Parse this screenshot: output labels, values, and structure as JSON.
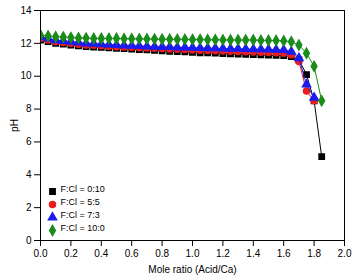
{
  "chart_data": {
    "type": "line",
    "x_label": "Mole ratio (Acid/Ca)",
    "y_label": "pH",
    "x": [
      0,
      0.05,
      0.1,
      0.15,
      0.2,
      0.25,
      0.3,
      0.35,
      0.4,
      0.45,
      0.5,
      0.55,
      0.6,
      0.65,
      0.7,
      0.75,
      0.8,
      0.85,
      0.9,
      0.95,
      1.0,
      1.05,
      1.1,
      1.15,
      1.2,
      1.25,
      1.3,
      1.35,
      1.4,
      1.45,
      1.5,
      1.55,
      1.6,
      1.65,
      1.7,
      1.75,
      1.8,
      1.85
    ],
    "series": [
      {
        "name": "F:Cl = 0:10",
        "color": "#000000",
        "marker": "square",
        "line_style": "solid",
        "values": [
          12.2,
          12.1,
          12.0,
          11.95,
          11.9,
          11.85,
          11.8,
          11.78,
          11.75,
          11.72,
          11.7,
          11.68,
          11.65,
          11.62,
          11.6,
          11.58,
          11.55,
          11.52,
          11.5,
          11.48,
          11.45,
          11.43,
          11.42,
          11.4,
          11.38,
          11.36,
          11.35,
          11.33,
          11.32,
          11.3,
          11.28,
          11.27,
          11.25,
          11.2,
          11.0,
          10.1,
          8.5,
          5.1
        ]
      },
      {
        "name": "F:Cl = 5:5",
        "color": "#ee1c1c",
        "marker": "circle",
        "line_style": "solid",
        "values": [
          12.3,
          12.2,
          12.1,
          12.05,
          12.0,
          11.95,
          11.9,
          11.88,
          11.85,
          11.82,
          11.8,
          11.78,
          11.76,
          11.74,
          11.72,
          11.7,
          11.68,
          11.66,
          11.64,
          11.62,
          11.6,
          11.58,
          11.57,
          11.55,
          11.54,
          11.52,
          11.5,
          11.49,
          11.48,
          11.46,
          11.45,
          11.43,
          11.4,
          11.3,
          10.9,
          9.1,
          8.5,
          null
        ]
      },
      {
        "name": "F:Cl = 7:3",
        "color": "#1c1cee",
        "marker": "triangle",
        "line_style": "solid",
        "values": [
          12.4,
          12.3,
          12.2,
          12.15,
          12.1,
          12.05,
          12.0,
          11.98,
          11.95,
          11.92,
          11.9,
          11.88,
          11.86,
          11.84,
          11.82,
          11.8,
          11.79,
          11.78,
          11.76,
          11.75,
          11.74,
          11.72,
          11.71,
          11.7,
          11.69,
          11.68,
          11.67,
          11.66,
          11.65,
          11.64,
          11.63,
          11.62,
          11.6,
          11.5,
          11.1,
          9.5,
          8.7,
          null
        ]
      },
      {
        "name": "F:Cl = 10:0",
        "color": "#1a8c1a",
        "marker": "diamond",
        "line_style": "solid",
        "values": [
          12.5,
          12.45,
          12.4,
          12.38,
          12.35,
          12.33,
          12.32,
          12.3,
          12.3,
          12.3,
          12.3,
          12.28,
          12.28,
          12.27,
          12.27,
          12.26,
          12.25,
          12.25,
          12.24,
          12.24,
          12.23,
          12.23,
          12.22,
          12.22,
          12.21,
          12.2,
          12.2,
          12.2,
          12.2,
          12.18,
          12.18,
          12.17,
          12.15,
          12.1,
          11.9,
          11.4,
          10.6,
          8.5
        ]
      }
    ],
    "xlim": [
      0,
      2.0
    ],
    "xticks": [
      {
        "value": 0,
        "label": "0.0"
      },
      {
        "value": 0.2,
        "label": "0.2"
      },
      {
        "value": 0.4,
        "label": "0.4"
      },
      {
        "value": 0.6,
        "label": "0.6"
      },
      {
        "value": 0.8,
        "label": "0.8"
      },
      {
        "value": 1.0,
        "label": "1.0"
      },
      {
        "value": 1.2,
        "label": "1.2"
      },
      {
        "value": 1.4,
        "label": "1.4"
      },
      {
        "value": 1.6,
        "label": "1.6"
      },
      {
        "value": 1.8,
        "label": "1.8"
      },
      {
        "value": 2.0,
        "label": "2.0"
      }
    ],
    "ylim": [
      0,
      14
    ],
    "yticks": [
      0,
      2,
      4,
      6,
      8,
      10,
      12,
      14
    ],
    "grid": false,
    "legend": "lower left"
  }
}
